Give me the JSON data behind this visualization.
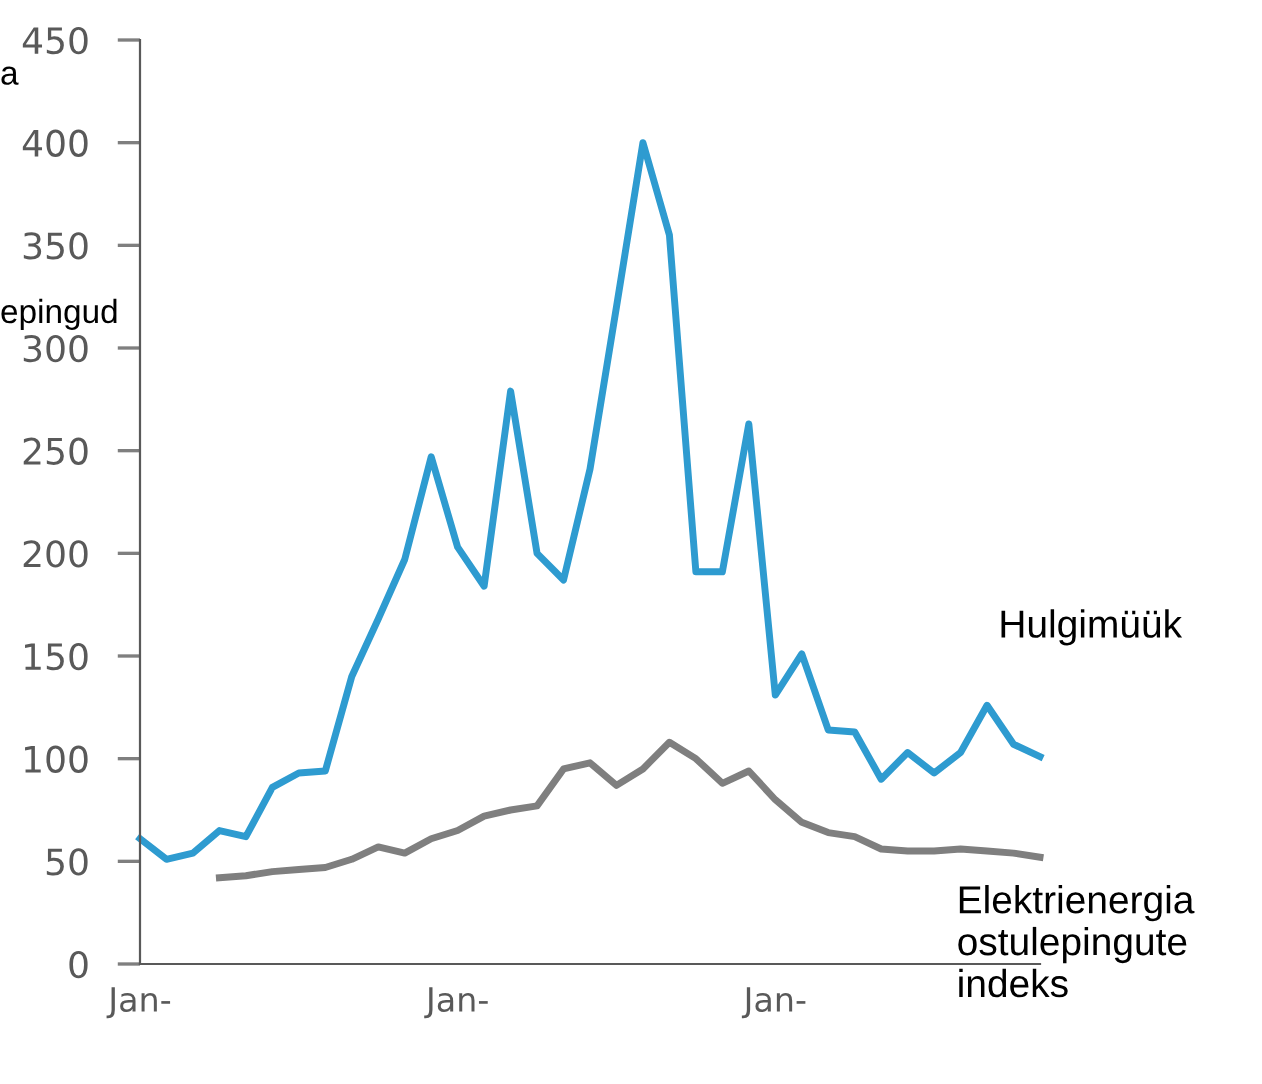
{
  "chart_data": {
    "type": "line",
    "categories": [
      "Jan-",
      null,
      null,
      null,
      null,
      null,
      null,
      null,
      null,
      null,
      null,
      null,
      "Jan-",
      null,
      null,
      null,
      null,
      null,
      null,
      null,
      null,
      null,
      null,
      null,
      "Jan-",
      null,
      null,
      null,
      null,
      null,
      null,
      null,
      null,
      null,
      null
    ],
    "series": [
      {
        "name": "Hulgimüük",
        "color": "#2e9bd0",
        "values": [
          61,
          51,
          54,
          65,
          62,
          86,
          93,
          94,
          140,
          168,
          197,
          247,
          203,
          184,
          279,
          200,
          187,
          241,
          320,
          400,
          355,
          191,
          191,
          263,
          131,
          151,
          114,
          113,
          90,
          103,
          93,
          103,
          126,
          107,
          101
        ]
      },
      {
        "name": "Elektrienergia ostulepingute indeks",
        "color": "#7f7f7f",
        "values": [
          null,
          null,
          null,
          42,
          43,
          45,
          46,
          47,
          51,
          57,
          54,
          61,
          65,
          72,
          75,
          77,
          95,
          98,
          87,
          95,
          108,
          100,
          88,
          94,
          80,
          69,
          64,
          62,
          56,
          55,
          55,
          56,
          55,
          54,
          52
        ]
      }
    ],
    "ylim": [
      0,
      450
    ],
    "yticks": [
      0,
      50,
      100,
      150,
      200,
      250,
      300,
      350,
      400,
      450
    ],
    "annotations": [
      "a",
      "epingud"
    ],
    "grid": false,
    "legend": false,
    "marker": "none",
    "line_style": "solid"
  }
}
